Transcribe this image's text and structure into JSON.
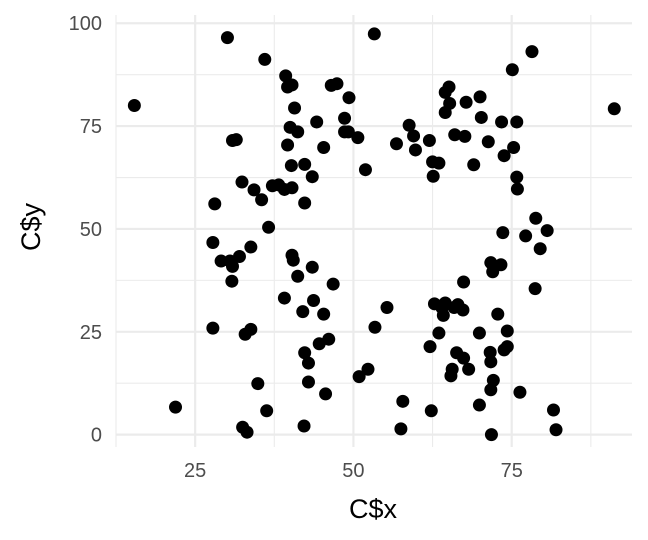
{
  "chart_data": {
    "type": "scatter",
    "title": "",
    "xlabel": "C$x",
    "ylabel": "C$y",
    "xlim": [
      12.5,
      94
    ],
    "ylim": [
      -3,
      102
    ],
    "x_ticks": [
      25,
      50,
      75
    ],
    "y_ticks": [
      0,
      25,
      50,
      75,
      100
    ],
    "x_tick_labels": [
      "25",
      "50",
      "75"
    ],
    "y_tick_labels": [
      "0",
      "25",
      "50",
      "75",
      "100"
    ],
    "grid": true,
    "legend": "none",
    "point_color": "#000000",
    "points": [
      [
        15.4,
        80.0
      ],
      [
        21.9,
        6.7
      ],
      [
        28.1,
        56.1
      ],
      [
        27.8,
        46.7
      ],
      [
        27.8,
        25.9
      ],
      [
        29.1,
        42.2
      ],
      [
        30.1,
        96.5
      ],
      [
        30.5,
        42.2
      ],
      [
        30.9,
        40.9
      ],
      [
        30.8,
        37.3
      ],
      [
        30.9,
        71.5
      ],
      [
        31.5,
        71.7
      ],
      [
        32.0,
        43.3
      ],
      [
        32.4,
        61.4
      ],
      [
        32.5,
        1.8
      ],
      [
        32.9,
        24.4
      ],
      [
        33.2,
        0.6
      ],
      [
        33.8,
        25.6
      ],
      [
        33.8,
        45.6
      ],
      [
        34.3,
        59.5
      ],
      [
        34.9,
        12.4
      ],
      [
        35.5,
        57.1
      ],
      [
        36.0,
        91.2
      ],
      [
        36.3,
        5.8
      ],
      [
        36.6,
        50.4
      ],
      [
        37.2,
        60.5
      ],
      [
        38.2,
        60.7
      ],
      [
        39.1,
        33.2
      ],
      [
        39.1,
        59.6
      ],
      [
        39.3,
        87.2
      ],
      [
        39.6,
        70.4
      ],
      [
        39.6,
        84.5
      ],
      [
        40.0,
        74.7
      ],
      [
        40.2,
        65.4
      ],
      [
        40.3,
        43.6
      ],
      [
        40.3,
        60.0
      ],
      [
        40.3,
        85.0
      ],
      [
        40.5,
        42.4
      ],
      [
        40.7,
        79.4
      ],
      [
        41.2,
        38.5
      ],
      [
        41.2,
        73.6
      ],
      [
        42.0,
        29.9
      ],
      [
        42.2,
        2.1
      ],
      [
        42.3,
        65.7
      ],
      [
        42.3,
        56.3
      ],
      [
        42.3,
        19.9
      ],
      [
        42.9,
        17.4
      ],
      [
        42.9,
        12.8
      ],
      [
        43.5,
        40.7
      ],
      [
        43.5,
        62.7
      ],
      [
        43.7,
        32.6
      ],
      [
        44.2,
        76.0
      ],
      [
        44.6,
        22.1
      ],
      [
        45.3,
        29.3
      ],
      [
        45.3,
        69.8
      ],
      [
        45.6,
        9.9
      ],
      [
        46.1,
        23.2
      ],
      [
        46.5,
        84.9
      ],
      [
        46.8,
        36.6
      ],
      [
        47.4,
        85.3
      ],
      [
        48.6,
        76.9
      ],
      [
        48.6,
        73.6
      ],
      [
        49.3,
        81.9
      ],
      [
        49.2,
        73.6
      ],
      [
        50.7,
        72.2
      ],
      [
        50.9,
        14.1
      ],
      [
        51.9,
        64.4
      ],
      [
        52.3,
        15.9
      ],
      [
        53.3,
        97.4
      ],
      [
        53.4,
        26.1
      ],
      [
        55.3,
        30.9
      ],
      [
        56.8,
        70.7
      ],
      [
        57.5,
        1.4
      ],
      [
        57.8,
        8.1
      ],
      [
        58.8,
        75.2
      ],
      [
        59.5,
        72.6
      ],
      [
        59.8,
        69.2
      ],
      [
        62.0,
        71.5
      ],
      [
        62.1,
        21.4
      ],
      [
        62.3,
        5.8
      ],
      [
        62.5,
        66.3
      ],
      [
        62.6,
        62.8
      ],
      [
        62.8,
        31.8
      ],
      [
        63.5,
        24.7
      ],
      [
        63.5,
        66.0
      ],
      [
        64.0,
        30.8
      ],
      [
        64.5,
        32.0
      ],
      [
        64.2,
        29.0
      ],
      [
        64.5,
        78.3
      ],
      [
        64.5,
        83.2
      ],
      [
        65.1,
        84.5
      ],
      [
        65.2,
        80.5
      ],
      [
        65.4,
        14.3
      ],
      [
        65.6,
        15.9
      ],
      [
        65.9,
        30.9
      ],
      [
        66.0,
        72.9
      ],
      [
        66.3,
        19.9
      ],
      [
        66.5,
        31.6
      ],
      [
        67.3,
        30.3
      ],
      [
        67.4,
        37.1
      ],
      [
        67.4,
        18.6
      ],
      [
        67.6,
        72.5
      ],
      [
        67.8,
        80.8
      ],
      [
        68.2,
        15.9
      ],
      [
        69.0,
        65.6
      ],
      [
        69.9,
        24.7
      ],
      [
        69.9,
        7.2
      ],
      [
        70.0,
        82.1
      ],
      [
        70.2,
        77.1
      ],
      [
        71.3,
        71.2
      ],
      [
        71.6,
        20.0
      ],
      [
        71.7,
        10.9
      ],
      [
        71.7,
        17.7
      ],
      [
        71.7,
        41.8
      ],
      [
        71.8,
        0.0
      ],
      [
        72.0,
        39.6
      ],
      [
        72.1,
        13.2
      ],
      [
        72.8,
        29.3
      ],
      [
        73.3,
        41.3
      ],
      [
        73.4,
        76.0
      ],
      [
        73.6,
        49.1
      ],
      [
        73.8,
        20.6
      ],
      [
        73.8,
        67.8
      ],
      [
        74.3,
        25.2
      ],
      [
        74.3,
        21.4
      ],
      [
        75.1,
        88.7
      ],
      [
        75.3,
        69.8
      ],
      [
        75.8,
        76.0
      ],
      [
        75.8,
        62.6
      ],
      [
        75.9,
        59.7
      ],
      [
        76.3,
        10.3
      ],
      [
        77.2,
        48.3
      ],
      [
        78.2,
        93.1
      ],
      [
        78.8,
        52.6
      ],
      [
        78.7,
        35.5
      ],
      [
        79.5,
        45.2
      ],
      [
        80.6,
        49.6
      ],
      [
        81.6,
        6.0
      ],
      [
        82.0,
        1.2
      ],
      [
        91.2,
        79.2
      ]
    ]
  }
}
